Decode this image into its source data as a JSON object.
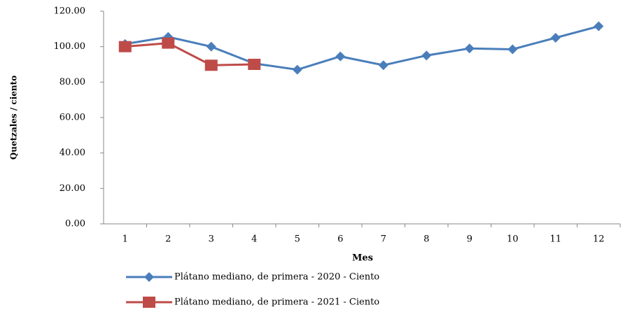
{
  "chart_data": {
    "type": "line",
    "x_label": "Mes",
    "y_label": "Quetzales / ciento",
    "categories": [
      "1",
      "2",
      "3",
      "4",
      "5",
      "6",
      "7",
      "8",
      "9",
      "10",
      "11",
      "12"
    ],
    "series": [
      {
        "name": "Plátano mediano, de primera - 2020 - Ciento",
        "color": "#4a7ebb",
        "marker": "diamond",
        "values": [
          101.5,
          105.5,
          100,
          90.5,
          87,
          94.5,
          89.5,
          95,
          99,
          98.5,
          105,
          111.5
        ]
      },
      {
        "name": "Plátano mediano, de primera - 2021 - Ciento",
        "color": "#be4b48",
        "marker": "square",
        "values": [
          100,
          102,
          89.5,
          90,
          null,
          null,
          null,
          null,
          null,
          null,
          null,
          null
        ]
      }
    ],
    "ylim": [
      0,
      120
    ],
    "yticks": [
      {
        "value": 0,
        "label": "0.00"
      },
      {
        "value": 20,
        "label": "20.00"
      },
      {
        "value": 40,
        "label": "40.00"
      },
      {
        "value": 60,
        "label": "60.00"
      },
      {
        "value": 80,
        "label": "80.00"
      },
      {
        "value": 100,
        "label": "100.00"
      },
      {
        "value": 120,
        "label": "120.00"
      }
    ],
    "grid": false,
    "legend": "bottom"
  }
}
